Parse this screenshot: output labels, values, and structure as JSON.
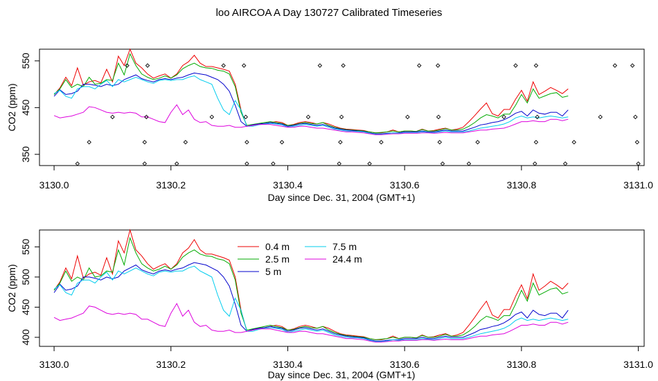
{
  "title": "loo AIRCOA A  Day 130727  Calibrated Timeseries",
  "chart_data": [
    {
      "type": "scatter",
      "xlabel": "Day since Dec. 31, 2004 (GMT+1)",
      "ylabel": "CO2 (ppm)",
      "xlim": [
        3129.975,
        3131.01
      ],
      "ylim": [
        326,
        575
      ],
      "x_ticks": [
        "3130.0",
        "3130.2",
        "3130.4",
        "3130.6",
        "3130.8",
        "3131.0"
      ],
      "y_ticks": [
        "350",
        "450",
        "550"
      ],
      "legend": "none",
      "series_ref": "shared_series",
      "points": [
        {
          "x": 3130.04,
          "y": 330
        },
        {
          "x": 3130.06,
          "y": 376
        },
        {
          "x": 3130.1,
          "y": 430
        },
        {
          "x": 3130.125,
          "y": 540
        },
        {
          "x": 3130.155,
          "y": 330
        },
        {
          "x": 3130.155,
          "y": 376
        },
        {
          "x": 3130.158,
          "y": 430
        },
        {
          "x": 3130.16,
          "y": 540
        },
        {
          "x": 3130.21,
          "y": 330
        },
        {
          "x": 3130.225,
          "y": 376
        },
        {
          "x": 3130.27,
          "y": 430
        },
        {
          "x": 3130.29,
          "y": 540
        },
        {
          "x": 3130.325,
          "y": 540
        },
        {
          "x": 3130.328,
          "y": 430
        },
        {
          "x": 3130.33,
          "y": 376
        },
        {
          "x": 3130.33,
          "y": 330
        },
        {
          "x": 3130.375,
          "y": 330
        },
        {
          "x": 3130.39,
          "y": 376
        },
        {
          "x": 3130.435,
          "y": 430
        },
        {
          "x": 3130.455,
          "y": 540
        },
        {
          "x": 3130.488,
          "y": 330
        },
        {
          "x": 3130.49,
          "y": 376
        },
        {
          "x": 3130.492,
          "y": 430
        },
        {
          "x": 3130.495,
          "y": 540
        },
        {
          "x": 3130.54,
          "y": 330
        },
        {
          "x": 3130.56,
          "y": 376
        },
        {
          "x": 3130.605,
          "y": 430
        },
        {
          "x": 3130.625,
          "y": 540
        },
        {
          "x": 3130.657,
          "y": 540
        },
        {
          "x": 3130.658,
          "y": 430
        },
        {
          "x": 3130.66,
          "y": 376
        },
        {
          "x": 3130.665,
          "y": 330
        },
        {
          "x": 3130.71,
          "y": 330
        },
        {
          "x": 3130.725,
          "y": 376
        },
        {
          "x": 3130.77,
          "y": 430
        },
        {
          "x": 3130.79,
          "y": 540
        },
        {
          "x": 3130.825,
          "y": 540
        },
        {
          "x": 3130.827,
          "y": 430
        },
        {
          "x": 3130.825,
          "y": 376
        },
        {
          "x": 3130.823,
          "y": 330
        },
        {
          "x": 3130.875,
          "y": 330
        },
        {
          "x": 3130.89,
          "y": 376
        },
        {
          "x": 3130.935,
          "y": 430
        },
        {
          "x": 3130.96,
          "y": 540
        },
        {
          "x": 3130.99,
          "y": 540
        },
        {
          "x": 3130.995,
          "y": 430
        },
        {
          "x": 3130.998,
          "y": 376
        },
        {
          "x": 3131.0,
          "y": 330
        }
      ]
    },
    {
      "type": "line",
      "xlabel": "Day since Dec. 31, 2004 (GMT+1)",
      "ylabel": "CO2 (ppm)",
      "xlim": [
        3129.975,
        3131.01
      ],
      "ylim": [
        385,
        578
      ],
      "x_ticks": [
        "3130.0",
        "3130.2",
        "3130.4",
        "3130.6",
        "3130.8",
        "3131.0"
      ],
      "y_ticks": [
        "400",
        "450",
        "500",
        "550"
      ],
      "legend": "top-center",
      "series_ref": "shared_series"
    }
  ],
  "shared_series": {
    "x_start": 3130.0,
    "x_step": 0.01,
    "series": [
      {
        "name": "0.4 m",
        "color": "#ee0000",
        "values": [
          478,
          492,
          515,
          497,
          535,
          498,
          505,
          508,
          503,
          532,
          505,
          560,
          540,
          578,
          545,
          535,
          522,
          513,
          518,
          522,
          513,
          522,
          540,
          548,
          562,
          545,
          538,
          538,
          535,
          532,
          528,
          500,
          445,
          410,
          412,
          415,
          416,
          418,
          420,
          418,
          412,
          414,
          418,
          420,
          418,
          415,
          418,
          415,
          410,
          406,
          404,
          403,
          402,
          401,
          398,
          396,
          396,
          398,
          402,
          398,
          400,
          400,
          399,
          404,
          400,
          401,
          404,
          406,
          402,
          404,
          408,
          420,
          433,
          447,
          460,
          437,
          432,
          446,
          446,
          468,
          487,
          464,
          505,
          478,
          485,
          493,
          487,
          480,
          490
        ]
      },
      {
        "name": "2.5 m",
        "color": "#00aa00",
        "values": [
          478,
          490,
          510,
          493,
          500,
          495,
          515,
          500,
          502,
          510,
          508,
          545,
          520,
          565,
          540,
          522,
          515,
          510,
          513,
          518,
          513,
          520,
          533,
          540,
          545,
          538,
          535,
          534,
          530,
          528,
          522,
          495,
          440,
          412,
          414,
          416,
          418,
          420,
          418,
          416,
          412,
          413,
          416,
          418,
          416,
          415,
          418,
          412,
          408,
          405,
          403,
          402,
          401,
          400,
          398,
          396,
          397,
          398,
          400,
          398,
          400,
          400,
          399,
          403,
          400,
          400,
          402,
          405,
          402,
          402,
          404,
          410,
          418,
          428,
          435,
          432,
          428,
          436,
          436,
          455,
          478,
          460,
          490,
          470,
          475,
          480,
          482,
          472,
          475
        ]
      },
      {
        "name": "5 m",
        "color": "#0000cc",
        "values": [
          474,
          488,
          478,
          480,
          485,
          500,
          500,
          498,
          495,
          500,
          497,
          500,
          510,
          515,
          520,
          512,
          508,
          505,
          510,
          512,
          510,
          513,
          515,
          520,
          524,
          522,
          520,
          515,
          510,
          500,
          485,
          455,
          420,
          410,
          413,
          415,
          416,
          418,
          416,
          415,
          410,
          412,
          415,
          416,
          414,
          412,
          414,
          410,
          406,
          404,
          402,
          401,
          400,
          399,
          396,
          394,
          394,
          395,
          396,
          396,
          398,
          398,
          398,
          400,
          398,
          398,
          400,
          402,
          400,
          400,
          400,
          404,
          408,
          413,
          415,
          418,
          420,
          424,
          430,
          438,
          442,
          432,
          445,
          438,
          436,
          440,
          440,
          432,
          445
        ]
      },
      {
        "name": "7.5 m",
        "color": "#00ccee",
        "values": [
          480,
          487,
          474,
          470,
          490,
          495,
          495,
          490,
          500,
          508,
          495,
          510,
          505,
          510,
          515,
          510,
          505,
          502,
          508,
          510,
          508,
          510,
          510,
          515,
          518,
          510,
          505,
          500,
          470,
          445,
          435,
          465,
          445,
          410,
          410,
          413,
          415,
          416,
          415,
          413,
          408,
          410,
          412,
          414,
          412,
          410,
          412,
          408,
          404,
          402,
          400,
          399,
          399,
          398,
          395,
          393,
          393,
          394,
          396,
          395,
          396,
          396,
          396,
          398,
          397,
          396,
          398,
          400,
          398,
          398,
          398,
          400,
          403,
          406,
          408,
          410,
          412,
          415,
          420,
          428,
          432,
          428,
          430,
          428,
          430,
          432,
          430,
          428,
          430
        ]
      },
      {
        "name": "24.4 m",
        "color": "#dd00dd",
        "values": [
          433,
          428,
          430,
          432,
          436,
          440,
          452,
          450,
          445,
          440,
          438,
          440,
          438,
          440,
          438,
          430,
          430,
          425,
          420,
          418,
          440,
          456,
          435,
          445,
          425,
          418,
          420,
          412,
          410,
          410,
          412,
          408,
          408,
          410,
          412,
          414,
          414,
          414,
          412,
          410,
          408,
          408,
          410,
          410,
          408,
          406,
          406,
          404,
          402,
          400,
          398,
          398,
          397,
          396,
          394,
          392,
          392,
          393,
          394,
          394,
          395,
          395,
          395,
          396,
          396,
          395,
          396,
          397,
          396,
          396,
          396,
          398,
          400,
          402,
          402,
          404,
          405,
          406,
          410,
          415,
          420,
          420,
          422,
          420,
          420,
          425,
          425,
          422,
          425
        ]
      }
    ]
  }
}
